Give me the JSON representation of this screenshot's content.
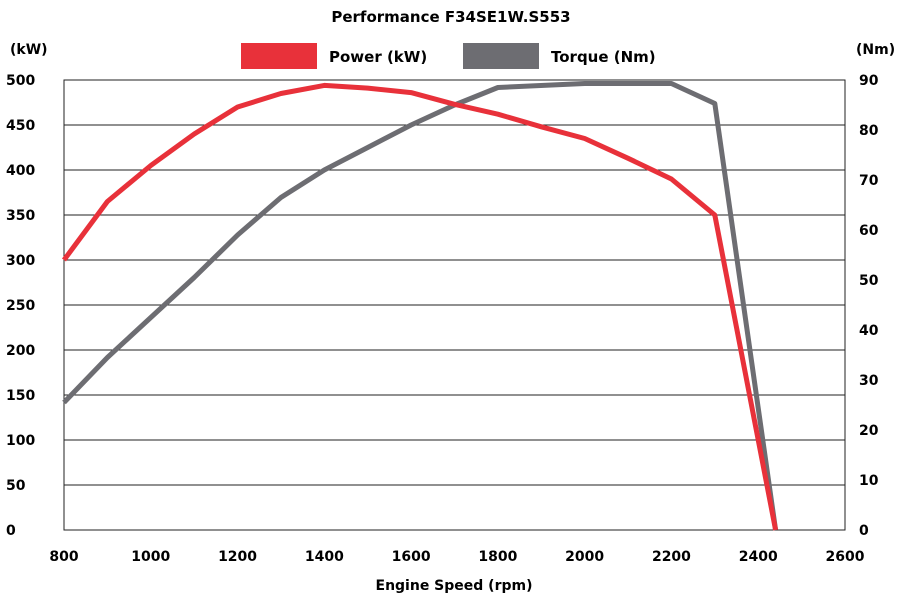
{
  "chart_data": {
    "type": "line",
    "title": "Performance F34SE1W.S553",
    "xlabel": "Engine Speed (rpm)",
    "ylabel_left": "(kW)",
    "ylabel_right": "(Nm)",
    "xlim": [
      800,
      2600
    ],
    "x_ticks": [
      "800",
      "1000",
      "1200",
      "1400",
      "1600",
      "1800",
      "2000",
      "2200",
      "2400",
      "2600"
    ],
    "ylim_left": [
      0,
      500
    ],
    "y_ticks_left": [
      "0",
      "50",
      "100",
      "150",
      "200",
      "250",
      "300",
      "350",
      "400",
      "450",
      "500"
    ],
    "ylim_right": [
      0,
      90
    ],
    "y_ticks_right": [
      "0",
      "10",
      "20",
      "30",
      "40",
      "50",
      "60",
      "70",
      "80",
      "90"
    ],
    "grid": "horizontal",
    "legend_position": "top-center",
    "series": [
      {
        "name": "Power (kW)",
        "axis": "left",
        "color": "#e8313a",
        "x": [
          800,
          900,
          1000,
          1100,
          1200,
          1300,
          1400,
          1500,
          1600,
          1700,
          1800,
          1900,
          2000,
          2100,
          2200,
          2300,
          2440
        ],
        "y": [
          300,
          365,
          405,
          440,
          470,
          485,
          494,
          491,
          486,
          473,
          462,
          448,
          435,
          413,
          390,
          350,
          0
        ]
      },
      {
        "name": "Torque (Nm)",
        "axis": "right",
        "color": "#6d6d72",
        "x": [
          800,
          900,
          1000,
          1100,
          1200,
          1300,
          1400,
          1500,
          1600,
          1700,
          1800,
          2000,
          2200,
          2300,
          2440
        ],
        "y": [
          25.5,
          34.5,
          42.5,
          50.5,
          59,
          66.5,
          72,
          76.5,
          81,
          85,
          88.5,
          89.3,
          89.3,
          85.3,
          0
        ]
      }
    ]
  }
}
